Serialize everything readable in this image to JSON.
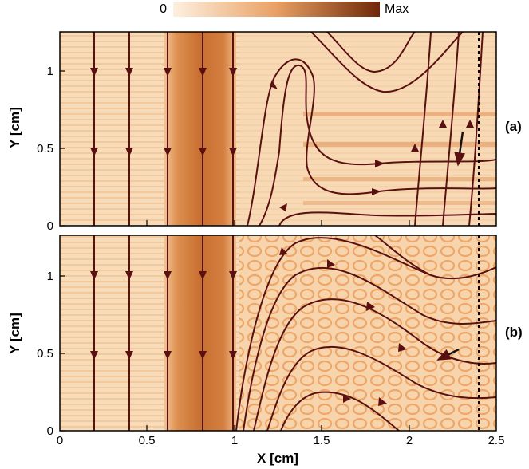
{
  "colorbar": {
    "min_label": "0",
    "max_label": "Max",
    "color_low": "#fdf0e0",
    "color_high": "#6e2808"
  },
  "colors": {
    "stream": "#5a1010",
    "band": "#cf7a3c",
    "background": "#f7d6b0"
  },
  "chart_data": [
    {
      "type": "streamline-contour",
      "panel_label": "(a)",
      "ylabel": "Y [cm]",
      "xlabel": "",
      "xlim": [
        0,
        2.5
      ],
      "ylim": [
        0,
        1.25
      ],
      "xticks": [
        0,
        0.5,
        1,
        1.5,
        2,
        2.5
      ],
      "yticks": [
        0,
        0.5,
        1
      ],
      "ytick_labels": [
        "0",
        "0.5",
        "1"
      ],
      "dashed_line_x": 2.4,
      "dark_band_x": [
        0.6,
        1.0
      ],
      "arrow_annotation": {
        "at": [
          2.28,
          0.42
        ],
        "direction": "down"
      }
    },
    {
      "type": "streamline-contour",
      "panel_label": "(b)",
      "ylabel": "Y [cm]",
      "xlabel": "X [cm]",
      "xlim": [
        0,
        2.5
      ],
      "ylim": [
        0,
        1.25
      ],
      "xticks": [
        0,
        0.5,
        1,
        1.5,
        2,
        2.5
      ],
      "xtick_labels": [
        "0",
        "0.5",
        "1",
        "1.5",
        "2",
        "2.5"
      ],
      "yticks": [
        0,
        0.5,
        1
      ],
      "ytick_labels": [
        "0",
        "0.5",
        "1"
      ],
      "dashed_line_x": 2.4,
      "dark_band_x": [
        0.6,
        1.0
      ],
      "arrow_annotation": {
        "at": [
          2.2,
          0.5
        ],
        "direction": "left"
      }
    }
  ]
}
